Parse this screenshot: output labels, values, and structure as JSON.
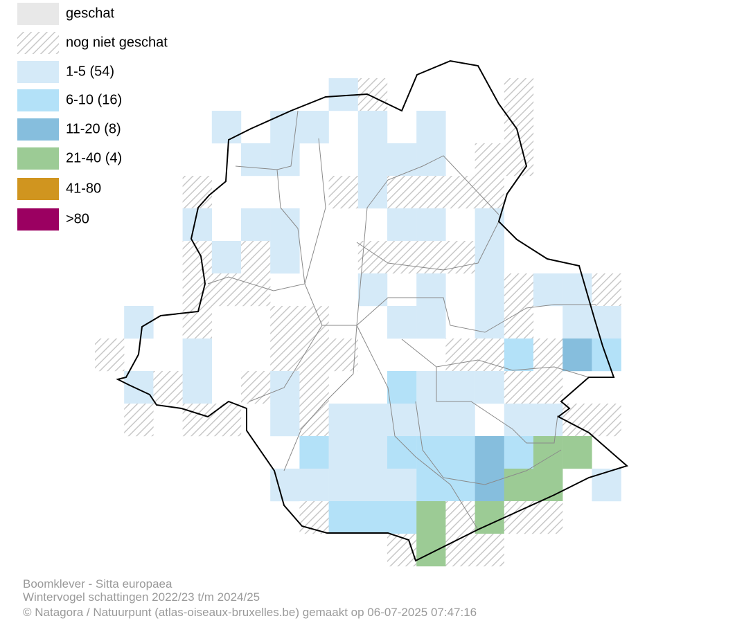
{
  "legend": [
    {
      "label": "geschat",
      "color": "#e8e8e8"
    },
    {
      "label": "nog niet geschat",
      "color": "#c8c8c8",
      "hatched": true
    },
    {
      "label": "1-5 (54)",
      "color": "#d5eaf8"
    },
    {
      "label": "6-10 (16)",
      "color": "#b3e1f8"
    },
    {
      "label": "11-20 (8)",
      "color": "#86bedd"
    },
    {
      "label": "21-40 (4)",
      "color": "#9ccb95"
    },
    {
      "label": "41-80",
      "color": "#d0951f"
    },
    {
      "label": ">80",
      "color": "#9b0061"
    }
  ],
  "footer": {
    "species": "Boomklever - Sitta europaea",
    "period": "Wintervogel schattingen 2022/23 t/m 2024/25",
    "credit": "© Natagora / Natuurpunt (atlas-oiseaux-bruxelles.be) gemaakt op 06-07-2025 07:47:16"
  }
}
